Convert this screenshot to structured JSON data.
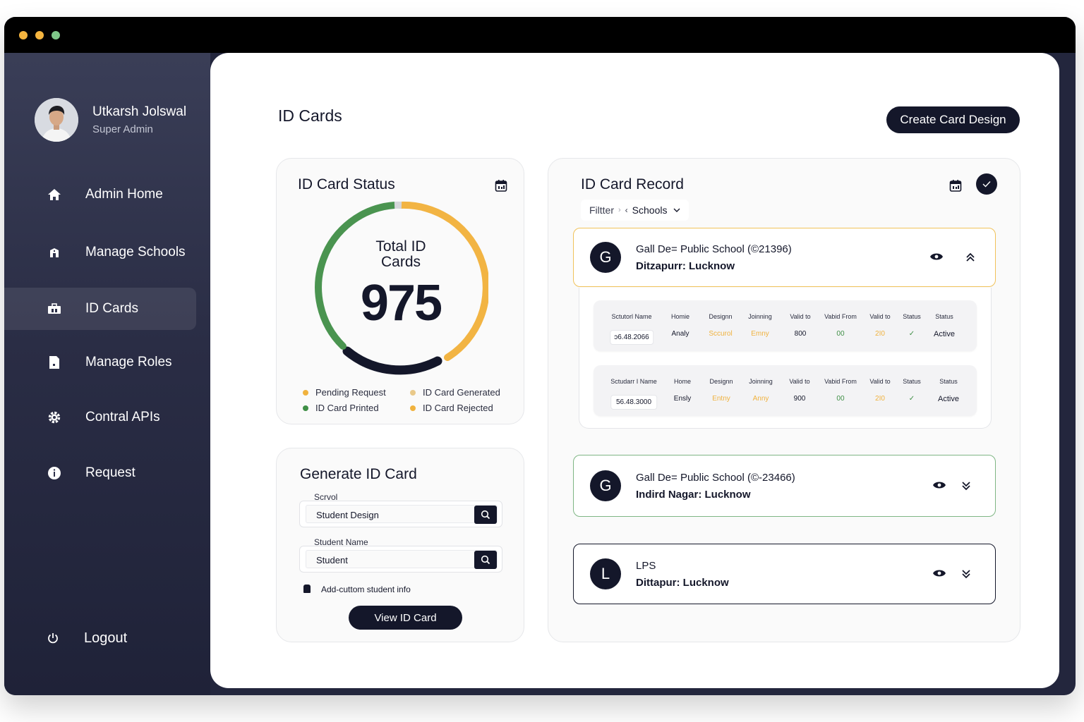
{
  "user": {
    "name": "Utkarsh Jolswal",
    "role": "Super Admin"
  },
  "sidebar": {
    "items": [
      {
        "label": "Admin Home",
        "icon": "home-icon"
      },
      {
        "label": "Manage Schools",
        "icon": "school-icon"
      },
      {
        "label": "ID Cards",
        "icon": "id-card-icon",
        "active": true
      },
      {
        "label": "Manage Roles",
        "icon": "document-icon"
      },
      {
        "label": "Contral APIs",
        "icon": "gear-icon"
      },
      {
        "label": "Request",
        "icon": "info-icon"
      }
    ],
    "logout": "Logout"
  },
  "header": {
    "title": "ID Cards",
    "create_button": "Create Card Design"
  },
  "status_card": {
    "title": "ID Card Status",
    "center_label_line1": "Total ID",
    "center_label_line2": "Cards",
    "total": "975",
    "legend": [
      {
        "label": "Pending Request",
        "color": "#f0b23e"
      },
      {
        "label": "ID Card Generated",
        "color": "#f0b23e"
      },
      {
        "label": "ID Card Printed",
        "color": "#3f8f46"
      },
      {
        "label": "ID Card Rejected",
        "color": "#f0b23e"
      }
    ],
    "colors": {
      "green": "#4a9450",
      "yellow": "#f2b443",
      "navy": "#14172a",
      "gray": "#d5d6da"
    }
  },
  "generate_card": {
    "title": "Generate ID Card",
    "school_label": "Scrvol",
    "school_value": "Student Design",
    "student_label": "Student Name",
    "student_value": "Student",
    "custom_info": "Add-cuttom student info",
    "view_button": "View ID Card"
  },
  "record_card": {
    "title": "ID Card Record",
    "filter_label": "Filtter",
    "filter_value": "Schools",
    "schools": [
      {
        "initial": "G",
        "name": "Gall De= Public School (©21396)",
        "location": "Ditzapurr: Lucknow",
        "expanded": true,
        "border": "#f0c25a",
        "rows": [
          {
            "headers": [
              "Sctutorl Name",
              "Homie",
              "Designn",
              "Joinning",
              "Valid to",
              "Vabid From",
              "Valid to",
              "Status",
              "Status"
            ],
            "values": [
              "ɔ6.48.2066",
              "Analy",
              "Sccurol",
              "Emny",
              "800",
              "00",
              "2I0",
              "✓",
              "Active"
            ]
          },
          {
            "headers": [
              "Sctudarr I Name",
              "Home",
              "Designn",
              "Joinning",
              "Valid to",
              "Vabid From",
              "Valid to",
              "Status",
              "Status"
            ],
            "values": [
              "56.48.3000",
              "Ensly",
              "Entny",
              "Anny",
              "900",
              "00",
              "2I0",
              "✓",
              "Active"
            ]
          }
        ]
      },
      {
        "initial": "G",
        "name": "Gall De= Public School (©-23466)",
        "location": "Indird Nagar: Lucknow",
        "expanded": false,
        "border": "#7fb684"
      },
      {
        "initial": "L",
        "name": "LPS",
        "location": "Dittapur: Lucknow",
        "expanded": false,
        "border": "#14172a"
      }
    ]
  }
}
